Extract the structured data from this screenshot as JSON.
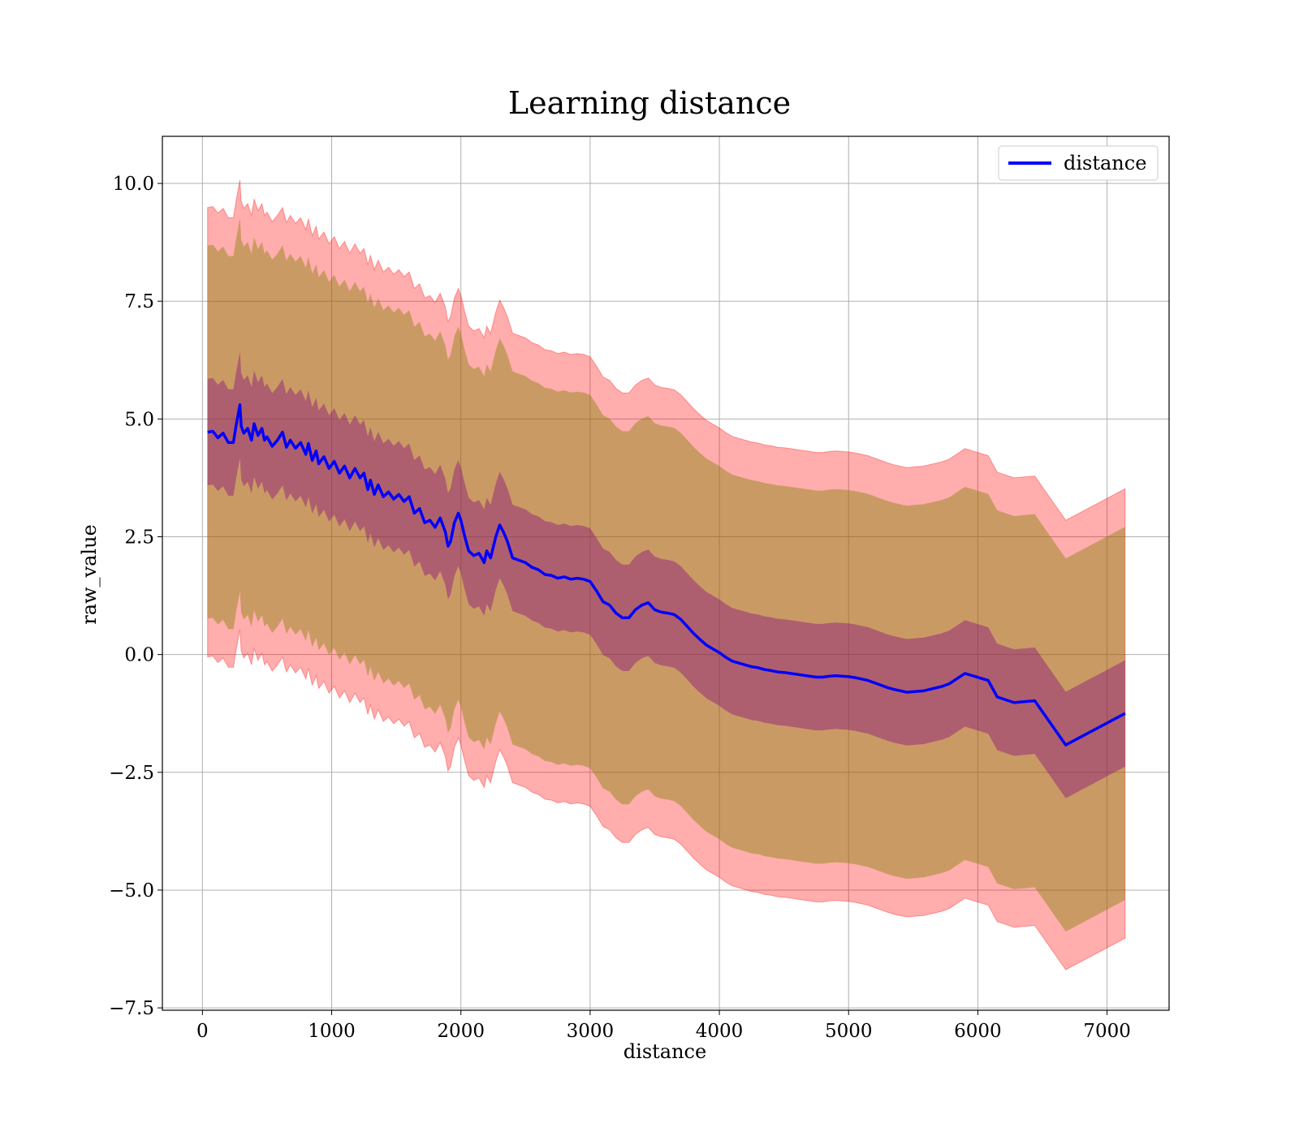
{
  "chart_data": {
    "type": "line",
    "title": "Learning distance",
    "xlabel": "distance",
    "ylabel": "raw_value",
    "xlim": [
      -310,
      7480
    ],
    "ylim": [
      -7.55,
      11.0
    ],
    "xticks": [
      0,
      1000,
      2000,
      3000,
      4000,
      5000,
      6000,
      7000
    ],
    "yticks": [
      -7.5,
      -5.0,
      -2.5,
      0.0,
      2.5,
      5.0,
      7.5,
      10.0
    ],
    "xtick_labels": [
      "0",
      "1000",
      "2000",
      "3000",
      "4000",
      "5000",
      "6000",
      "7000"
    ],
    "ytick_labels": [
      "−7.5",
      "−5.0",
      "−2.5",
      "0.0",
      "2.5",
      "5.0",
      "7.5",
      "10.0"
    ],
    "grid": true,
    "legend": {
      "position": "top-right",
      "entries": [
        "distance"
      ]
    },
    "colors": {
      "line": "#0000ff",
      "outer_band": "#ff0000",
      "middle_band": "#808000",
      "inner_band": "#800080"
    },
    "band_widths": {
      "inner": 1.13,
      "middle": 3.96,
      "outer": 4.77
    },
    "series": [
      {
        "name": "distance",
        "x": [
          40,
          80,
          120,
          160,
          200,
          240,
          260,
          290,
          300,
          320,
          350,
          380,
          400,
          430,
          460,
          480,
          500,
          540,
          580,
          620,
          650,
          680,
          720,
          760,
          800,
          820,
          850,
          880,
          900,
          940,
          980,
          1020,
          1060,
          1100,
          1140,
          1180,
          1220,
          1250,
          1280,
          1300,
          1330,
          1360,
          1400,
          1440,
          1480,
          1520,
          1560,
          1600,
          1640,
          1680,
          1720,
          1760,
          1800,
          1840,
          1880,
          1900,
          1920,
          1950,
          1980,
          2000,
          2030,
          2060,
          2100,
          2140,
          2180,
          2200,
          2230,
          2270,
          2300,
          2330,
          2360,
          2400,
          2450,
          2500,
          2550,
          2600,
          2650,
          2700,
          2750,
          2800,
          2850,
          2900,
          2950,
          3000,
          3050,
          3100,
          3150,
          3200,
          3250,
          3300,
          3350,
          3400,
          3450,
          3500,
          3550,
          3600,
          3650,
          3700,
          3750,
          3800,
          3850,
          3900,
          3950,
          4000,
          4050,
          4100,
          4150,
          4200,
          4250,
          4300,
          4350,
          4400,
          4450,
          4500,
          4550,
          4600,
          4650,
          4700,
          4750,
          4800,
          4850,
          4900,
          4950,
          5000,
          5050,
          5100,
          5150,
          5200,
          5250,
          5300,
          5350,
          5450,
          5580,
          5720,
          5780,
          5900,
          6080,
          6150,
          6280,
          6440,
          6680,
          7140
        ],
        "y": [
          4.72,
          4.74,
          4.6,
          4.7,
          4.5,
          4.5,
          4.85,
          5.3,
          4.85,
          4.7,
          4.8,
          4.55,
          4.9,
          4.65,
          4.8,
          4.55,
          4.62,
          4.42,
          4.55,
          4.72,
          4.4,
          4.55,
          4.38,
          4.5,
          4.25,
          4.48,
          4.12,
          4.32,
          4.05,
          4.2,
          3.95,
          4.1,
          3.85,
          4.0,
          3.75,
          3.95,
          3.75,
          3.85,
          3.5,
          3.7,
          3.4,
          3.6,
          3.35,
          3.45,
          3.3,
          3.4,
          3.25,
          3.35,
          3.0,
          3.1,
          2.8,
          2.85,
          2.7,
          2.9,
          2.6,
          2.3,
          2.4,
          2.8,
          3.0,
          2.85,
          2.5,
          2.2,
          2.1,
          2.15,
          1.95,
          2.2,
          2.05,
          2.5,
          2.75,
          2.6,
          2.4,
          2.05,
          2.0,
          1.95,
          1.85,
          1.8,
          1.7,
          1.68,
          1.62,
          1.65,
          1.6,
          1.62,
          1.6,
          1.55,
          1.35,
          1.12,
          1.05,
          0.88,
          0.78,
          0.78,
          0.95,
          1.05,
          1.1,
          0.95,
          0.9,
          0.88,
          0.85,
          0.75,
          0.6,
          0.45,
          0.32,
          0.2,
          0.12,
          0.04,
          -0.06,
          -0.14,
          -0.18,
          -0.22,
          -0.26,
          -0.28,
          -0.32,
          -0.34,
          -0.37,
          -0.38,
          -0.4,
          -0.42,
          -0.44,
          -0.46,
          -0.48,
          -0.48,
          -0.46,
          -0.45,
          -0.46,
          -0.47,
          -0.49,
          -0.52,
          -0.55,
          -0.6,
          -0.65,
          -0.7,
          -0.74,
          -0.8,
          -0.77,
          -0.68,
          -0.62,
          -0.4,
          -0.55,
          -0.9,
          -1.02,
          -0.98,
          -1.92,
          -1.25
        ]
      }
    ]
  }
}
